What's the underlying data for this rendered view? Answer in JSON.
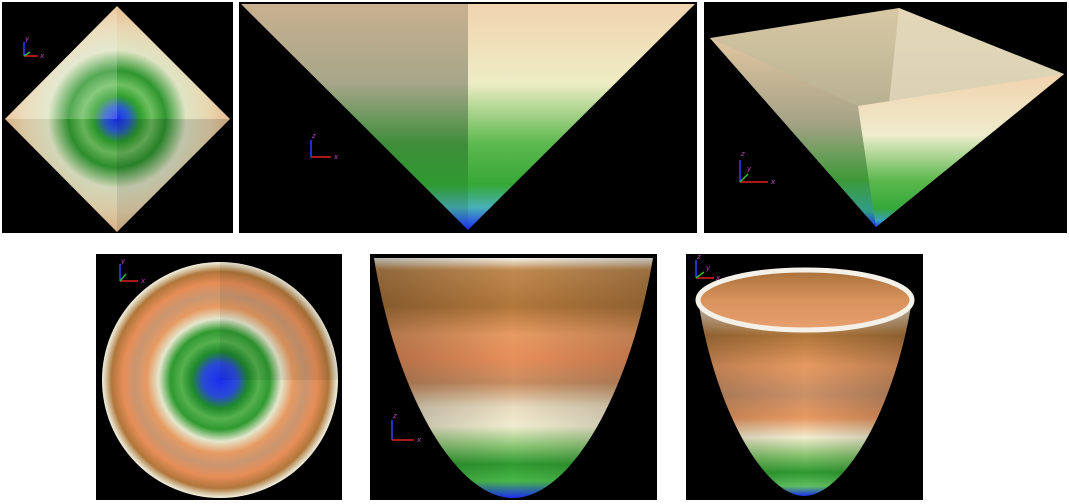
{
  "figure": {
    "colors": {
      "background": "#000000",
      "page": "#ffffff",
      "axis_x": "#e02020",
      "axis_y": "#30c030",
      "axis_z": "#3040ff",
      "axis_label": "#c040c0",
      "surface_low": "#1a2ef0",
      "surface_green": "#2ea02e",
      "surface_cream": "#f1ecd0",
      "surface_orange": "#e79a62",
      "surface_brown": "#b0763a"
    },
    "panels": [
      {
        "id": "pyramid-top-view",
        "axes": [
          "y",
          "x"
        ]
      },
      {
        "id": "pyramid-front-view",
        "axes": [
          "z",
          "x"
        ]
      },
      {
        "id": "pyramid-perspective-view",
        "axes": [
          "z",
          "y",
          "x"
        ]
      },
      {
        "id": "paraboloid-top-view",
        "axes": [
          "y",
          "x"
        ]
      },
      {
        "id": "paraboloid-front-view",
        "axes": [
          "z",
          "x"
        ]
      },
      {
        "id": "paraboloid-perspective-view",
        "axes": [
          "z",
          "y",
          "x"
        ]
      }
    ]
  }
}
